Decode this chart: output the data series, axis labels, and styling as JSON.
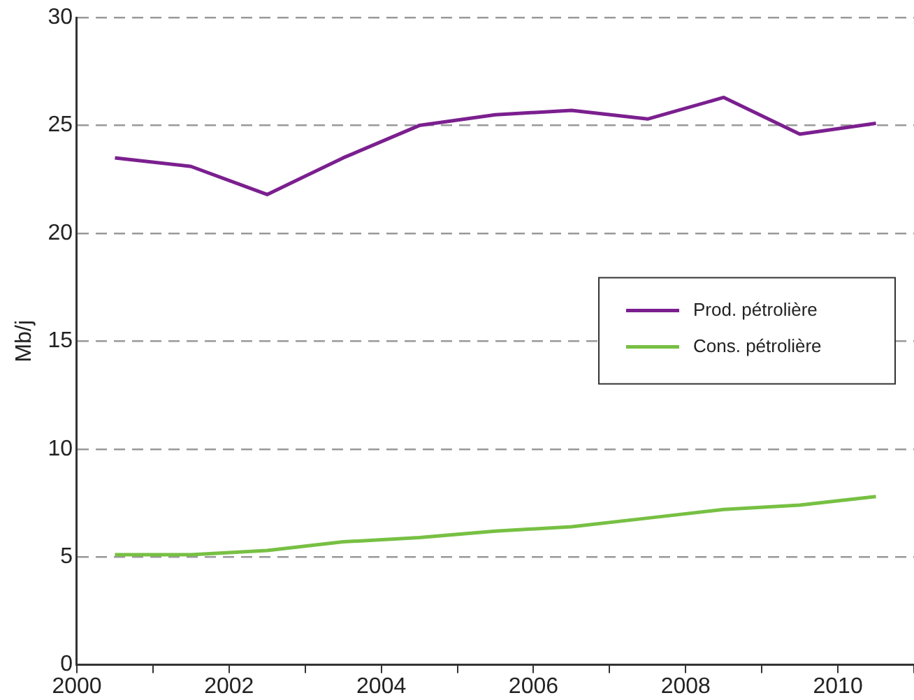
{
  "chart_data": {
    "type": "line",
    "ylabel": "Mb/j",
    "x": [
      2000.5,
      2001.5,
      2002.5,
      2003.5,
      2004.5,
      2005.5,
      2006.5,
      2007.5,
      2008.5,
      2009.5,
      2010.5
    ],
    "series": [
      {
        "name": "Prod. pétrolière",
        "color": "#7b1f8f",
        "values": [
          23.5,
          23.1,
          21.8,
          23.5,
          25.0,
          25.5,
          25.7,
          25.3,
          26.3,
          24.6,
          25.1
        ]
      },
      {
        "name": "Cons. pétrolière",
        "color": "#77c043",
        "values": [
          5.1,
          5.1,
          5.3,
          5.7,
          5.9,
          6.2,
          6.4,
          6.8,
          7.2,
          7.4,
          7.8
        ]
      }
    ],
    "xlim": [
      2000,
      2011
    ],
    "xticks": [
      2000,
      {
        "value": 2001,
        "label": null
      },
      2002,
      {
        "value": 2003,
        "label": null
      },
      2004,
      {
        "value": 2005,
        "label": null
      },
      2006,
      {
        "value": 2007,
        "label": null
      },
      2008,
      {
        "value": 2009,
        "label": null
      },
      2010,
      {
        "value": 2011,
        "label": null
      }
    ],
    "ylim": [
      0,
      30
    ],
    "yticks": [
      0,
      5,
      10,
      15,
      20,
      25,
      30
    ],
    "grid": "y",
    "legend": "right",
    "marker": "none",
    "line_style": "solid"
  }
}
